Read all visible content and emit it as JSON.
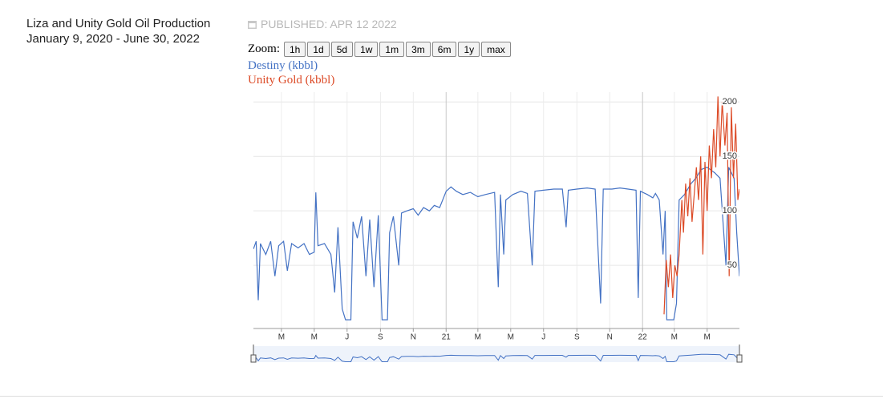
{
  "header": {
    "title": "Liza and Unity Gold Oil Production",
    "subtitle": "January 9, 2020 - June 30, 2022",
    "published": "PUBLISHED: APR 12 2022"
  },
  "zoom": {
    "label": "Zoom:",
    "buttons": [
      "1h",
      "1d",
      "5d",
      "1w",
      "1m",
      "3m",
      "6m",
      "1y",
      "max"
    ]
  },
  "chart_data": {
    "type": "line",
    "xlim": [
      "2020-01-09",
      "2022-06-30"
    ],
    "xticks": [
      {
        "value": "2020-03-01",
        "label": "M"
      },
      {
        "value": "2020-05-01",
        "label": "M"
      },
      {
        "value": "2020-07-01",
        "label": "J"
      },
      {
        "value": "2020-09-01",
        "label": "S"
      },
      {
        "value": "2020-11-01",
        "label": "N"
      },
      {
        "value": "2021-01-01",
        "label": "21"
      },
      {
        "value": "2021-03-01",
        "label": "M"
      },
      {
        "value": "2021-05-01",
        "label": "M"
      },
      {
        "value": "2021-07-01",
        "label": "J"
      },
      {
        "value": "2021-09-01",
        "label": "S"
      },
      {
        "value": "2021-11-01",
        "label": "N"
      },
      {
        "value": "2022-01-01",
        "label": "22"
      },
      {
        "value": "2022-03-01",
        "label": "M"
      },
      {
        "value": "2022-05-01",
        "label": "M"
      }
    ],
    "ylim": [
      -8,
      209
    ],
    "yticks": [
      50,
      100,
      150,
      200
    ],
    "grid": true,
    "series": [
      {
        "name": "Destiny (kbbl)",
        "color": "#4472c4",
        "x": [
          "2020-01-09",
          "2020-01-14",
          "2020-01-18",
          "2020-01-22",
          "2020-02-01",
          "2020-02-10",
          "2020-02-18",
          "2020-02-25",
          "2020-03-05",
          "2020-03-12",
          "2020-03-20",
          "2020-04-01",
          "2020-04-12",
          "2020-04-22",
          "2020-05-01",
          "2020-05-04",
          "2020-05-08",
          "2020-05-20",
          "2020-06-01",
          "2020-06-08",
          "2020-06-14",
          "2020-06-22",
          "2020-06-28",
          "2020-07-08",
          "2020-07-12",
          "2020-07-20",
          "2020-07-28",
          "2020-08-05",
          "2020-08-12",
          "2020-08-20",
          "2020-08-28",
          "2020-09-04",
          "2020-09-14",
          "2020-09-18",
          "2020-09-25",
          "2020-10-05",
          "2020-10-10",
          "2020-10-20",
          "2020-11-01",
          "2020-11-10",
          "2020-11-20",
          "2020-12-01",
          "2020-12-10",
          "2020-12-20",
          "2021-01-01",
          "2021-01-10",
          "2021-01-20",
          "2021-02-01",
          "2021-02-15",
          "2021-03-01",
          "2021-03-15",
          "2021-04-01",
          "2021-04-08",
          "2021-04-12",
          "2021-04-18",
          "2021-04-22",
          "2021-05-05",
          "2021-05-20",
          "2021-06-01",
          "2021-06-10",
          "2021-06-15",
          "2021-07-01",
          "2021-07-20",
          "2021-08-05",
          "2021-08-12",
          "2021-08-16",
          "2021-09-01",
          "2021-09-20",
          "2021-10-05",
          "2021-10-15",
          "2021-10-20",
          "2021-11-05",
          "2021-11-20",
          "2021-12-05",
          "2021-12-20",
          "2021-12-24",
          "2021-12-28",
          "2022-01-10",
          "2022-01-20",
          "2022-01-25",
          "2022-02-01",
          "2022-02-08",
          "2022-02-12",
          "2022-02-15",
          "2022-02-28",
          "2022-03-05",
          "2022-03-10",
          "2022-03-20",
          "2022-04-01",
          "2022-04-10",
          "2022-04-20",
          "2022-05-01",
          "2022-05-15",
          "2022-05-25",
          "2022-06-05",
          "2022-06-10",
          "2022-06-20",
          "2022-06-25",
          "2022-06-30"
        ],
        "values": [
          65,
          72,
          18,
          70,
          60,
          72,
          40,
          68,
          72,
          45,
          70,
          66,
          70,
          60,
          62,
          117,
          68,
          70,
          60,
          25,
          85,
          10,
          0,
          0,
          90,
          75,
          95,
          40,
          92,
          30,
          96,
          0,
          0,
          80,
          95,
          50,
          98,
          100,
          102,
          96,
          103,
          100,
          105,
          103,
          118,
          122,
          118,
          115,
          117,
          113,
          115,
          117,
          30,
          115,
          60,
          110,
          115,
          118,
          116,
          50,
          118,
          119,
          120,
          120,
          85,
          119,
          120,
          121,
          120,
          15,
          120,
          120,
          121,
          120,
          119,
          20,
          118,
          115,
          112,
          116,
          110,
          60,
          100,
          0,
          0,
          15,
          110,
          115,
          125,
          130,
          138,
          140,
          135,
          130,
          50,
          140,
          130,
          80,
          40
        ]
      },
      {
        "name": "Unity Gold (kbbl)",
        "color": "#dc4a26",
        "x": [
          "2022-02-10",
          "2022-02-14",
          "2022-02-18",
          "2022-02-22",
          "2022-02-26",
          "2022-03-02",
          "2022-03-06",
          "2022-03-10",
          "2022-03-15",
          "2022-03-18",
          "2022-03-22",
          "2022-03-26",
          "2022-03-30",
          "2022-04-03",
          "2022-04-07",
          "2022-04-11",
          "2022-04-15",
          "2022-04-19",
          "2022-04-23",
          "2022-04-27",
          "2022-05-01",
          "2022-05-05",
          "2022-05-09",
          "2022-05-13",
          "2022-05-17",
          "2022-05-21",
          "2022-05-25",
          "2022-05-29",
          "2022-06-03",
          "2022-06-07",
          "2022-06-11",
          "2022-06-15",
          "2022-06-19",
          "2022-06-23",
          "2022-06-27",
          "2022-06-30"
        ],
        "values": [
          5,
          55,
          30,
          60,
          20,
          50,
          40,
          60,
          110,
          80,
          125,
          95,
          130,
          90,
          115,
          140,
          110,
          150,
          60,
          145,
          100,
          160,
          130,
          175,
          140,
          205,
          150,
          200,
          160,
          190,
          40,
          195,
          130,
          180,
          110,
          120
        ]
      }
    ]
  }
}
